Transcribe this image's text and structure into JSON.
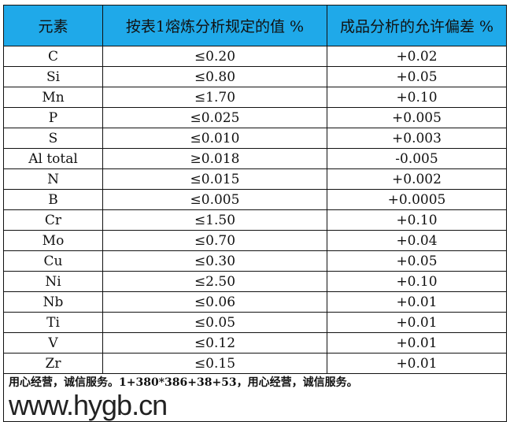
{
  "headers": [
    "元素",
    "按表1熔炼分析规定的值 %",
    "成品分析的允许偏差 %"
  ],
  "rows": [
    [
      "C",
      "≤0.20",
      "+0.02"
    ],
    [
      "Si",
      "≤0.80",
      "+0.05"
    ],
    [
      "Mn",
      "≤1.70",
      "+0.10"
    ],
    [
      "P",
      "≤0.025",
      "+0.005"
    ],
    [
      "S",
      "≤0.010",
      "+0.003"
    ],
    [
      "Al total",
      "≥0.018",
      "-0.005"
    ],
    [
      "N",
      "≤0.015",
      "+0.002"
    ],
    [
      "B",
      "≤0.005",
      "+0.0005"
    ],
    [
      "Cr",
      "≤1.50",
      "+0.10"
    ],
    [
      "Mo",
      "≤0.70",
      "+0.04"
    ],
    [
      "Cu",
      "≤0.30",
      "+0.05"
    ],
    [
      "Ni",
      "≤2.50",
      "+0.10"
    ],
    [
      "Nb",
      "≤0.06",
      "+0.01"
    ],
    [
      "Ti",
      "≤0.05",
      "+0.01"
    ],
    [
      "V",
      "≤0.12",
      "+0.01"
    ],
    [
      "Zr",
      "≤0.15",
      "+0.01"
    ]
  ],
  "footer": "用心经营，诚信服务。1+380*386+38+53，用心经营，诚信服务。",
  "watermark": "www.hygb.cn",
  "colors": {
    "header_bg": "#1FA9E9"
  }
}
